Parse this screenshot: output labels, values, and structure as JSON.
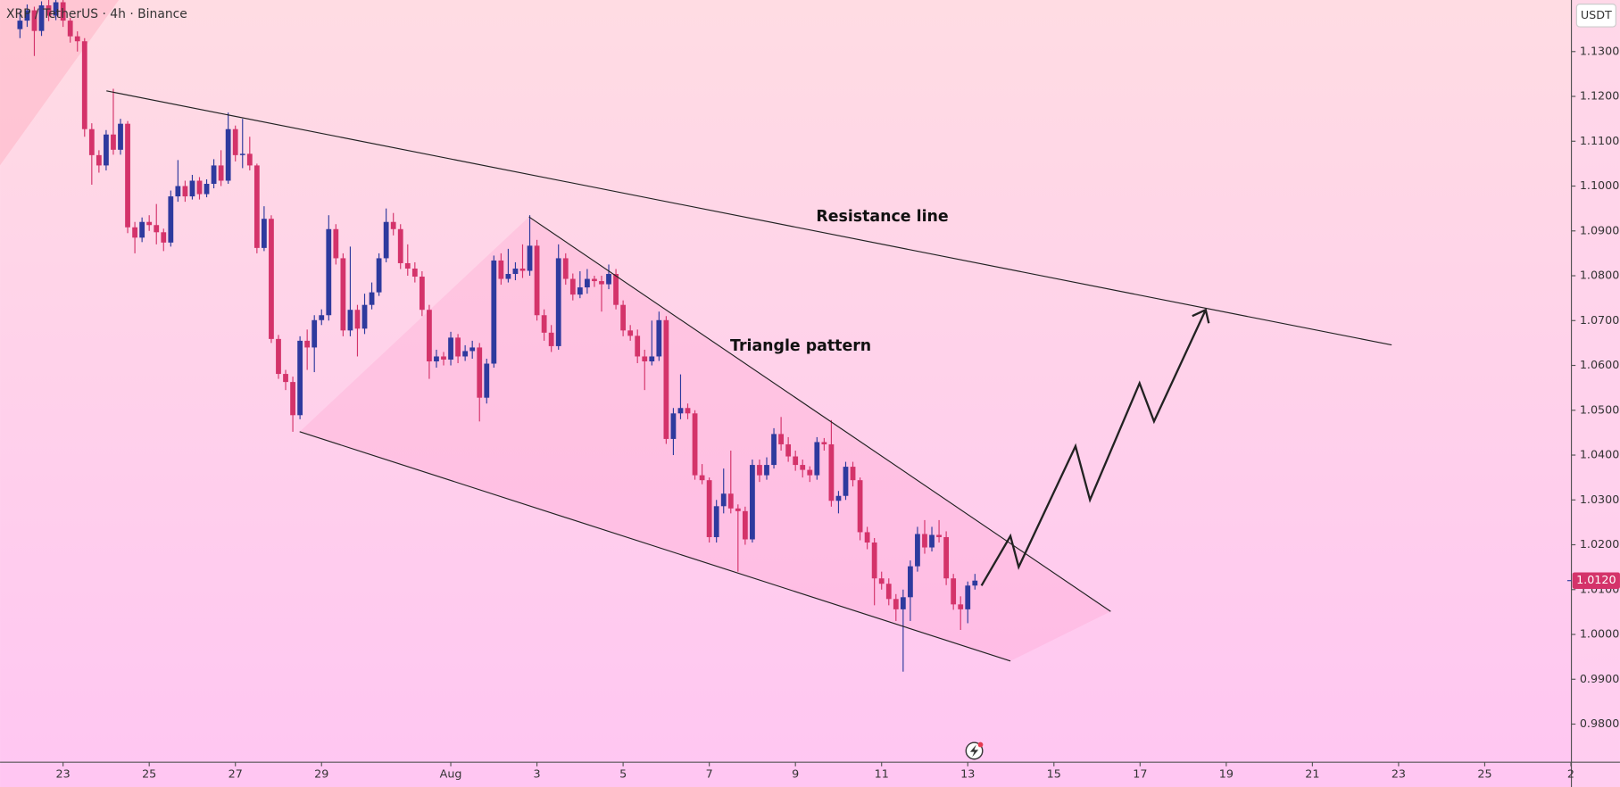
{
  "chart_data": {
    "type": "candlestick",
    "title": "XRP / TetherUS · 4h · Binance",
    "currency": "USDT",
    "annotations": [
      "Resistance line",
      "Triangle pattern"
    ],
    "up_color": "#2e3a9e",
    "down_color": "#d4336a",
    "last_price": {
      "value": 1.012,
      "label": "1.0120"
    },
    "xlim": [
      -1.463,
      35.012
    ],
    "ylim": [
      0.9715,
      1.1415
    ],
    "xticks": [
      {
        "value": 0,
        "label": "23"
      },
      {
        "value": 2,
        "label": "25"
      },
      {
        "value": 4,
        "label": "27"
      },
      {
        "value": 6,
        "label": "29"
      },
      {
        "value": 9,
        "label": "Aug"
      },
      {
        "value": 11,
        "label": "3"
      },
      {
        "value": 13,
        "label": "5"
      },
      {
        "value": 15,
        "label": "7"
      },
      {
        "value": 17,
        "label": "9"
      },
      {
        "value": 19,
        "label": "11"
      },
      {
        "value": 21,
        "label": "13"
      },
      {
        "value": 23,
        "label": "15"
      },
      {
        "value": 25,
        "label": "17"
      },
      {
        "value": 27,
        "label": "19"
      },
      {
        "value": 29,
        "label": "21"
      },
      {
        "value": 31,
        "label": "23"
      },
      {
        "value": 33,
        "label": "25"
      },
      {
        "value": 35,
        "label": "2"
      }
    ],
    "yticks": [
      {
        "value": 1.13,
        "label": "1.1300"
      },
      {
        "value": 1.12,
        "label": "1.1200"
      },
      {
        "value": 1.11,
        "label": "1.1100"
      },
      {
        "value": 1.1,
        "label": "1.1000"
      },
      {
        "value": 1.09,
        "label": "1.0900"
      },
      {
        "value": 1.08,
        "label": "1.0800"
      },
      {
        "value": 1.07,
        "label": "1.0700"
      },
      {
        "value": 1.06,
        "label": "1.0600"
      },
      {
        "value": 1.05,
        "label": "1.0500"
      },
      {
        "value": 1.04,
        "label": "1.0400"
      },
      {
        "value": 1.03,
        "label": "1.0300"
      },
      {
        "value": 1.02,
        "label": "1.0200"
      },
      {
        "value": 1.01,
        "label": "1.0100"
      },
      {
        "value": 1.0,
        "label": "1.0000"
      },
      {
        "value": 0.99,
        "label": "0.9900"
      },
      {
        "value": 0.98,
        "label": "0.9800"
      }
    ],
    "x": [
      -1,
      -0.8333,
      -0.6667,
      -0.5,
      -0.3333,
      -0.1667,
      0,
      0.1667,
      0.3333,
      0.5,
      0.6667,
      0.8333,
      1,
      1.1667,
      1.3333,
      1.5,
      1.6667,
      1.8333,
      2,
      2.1667,
      2.3333,
      2.5,
      2.6667,
      2.8333,
      3,
      3.1667,
      3.3333,
      3.5,
      3.6667,
      3.8333,
      4,
      4.1667,
      4.3333,
      4.5,
      4.6667,
      4.8333,
      5,
      5.1667,
      5.3333,
      5.5,
      5.6667,
      5.8333,
      6,
      6.1667,
      6.3333,
      6.5,
      6.6667,
      6.8333,
      7,
      7.1667,
      7.3333,
      7.5,
      7.6667,
      7.8333,
      8,
      8.1667,
      8.3333,
      8.5,
      8.6667,
      8.8333,
      9,
      9.1667,
      9.3333,
      9.5,
      9.6667,
      9.8333,
      10,
      10.1667,
      10.3333,
      10.5,
      10.6667,
      10.8333,
      11,
      11.1667,
      11.3333,
      11.5,
      11.6667,
      11.8333,
      12,
      12.1667,
      12.3333,
      12.5,
      12.6667,
      12.8333,
      13,
      13.1667,
      13.3333,
      13.5,
      13.6667,
      13.8333,
      14,
      14.1667,
      14.3333,
      14.5,
      14.6667,
      14.8333,
      15,
      15.1667,
      15.3333,
      15.5,
      15.6667,
      15.8333,
      16,
      16.1667,
      16.3333,
      16.5,
      16.6667,
      16.8333,
      17,
      17.1667,
      17.3333,
      17.5,
      17.6667,
      17.8333,
      18,
      18.1667,
      18.3333,
      18.5,
      18.6667,
      18.8333,
      19,
      19.1667,
      19.3333,
      19.5,
      19.6667,
      19.8333,
      20,
      20.1667,
      20.3333,
      20.5,
      20.6667,
      20.8333,
      21,
      21.1667
    ],
    "ohlc": [
      [
        1.135,
        1.139,
        1.133,
        1.1369
      ],
      [
        1.1369,
        1.1405,
        1.1355,
        1.1392
      ],
      [
        1.1392,
        1.14,
        1.129,
        1.1346
      ],
      [
        1.1346,
        1.1412,
        1.1335,
        1.1403
      ],
      [
        1.1403,
        1.1415,
        1.1368,
        1.138
      ],
      [
        1.138,
        1.1415,
        1.137,
        1.141
      ],
      [
        1.141,
        1.1415,
        1.1355,
        1.1369
      ],
      [
        1.1369,
        1.1375,
        1.132,
        1.1334
      ],
      [
        1.1334,
        1.1345,
        1.13,
        1.1323
      ],
      [
        1.1323,
        1.133,
        1.111,
        1.1127
      ],
      [
        1.1127,
        1.114,
        1.1003,
        1.1069
      ],
      [
        1.1069,
        1.108,
        1.103,
        1.1046
      ],
      [
        1.1046,
        1.1125,
        1.1035,
        1.1115
      ],
      [
        1.1115,
        1.1217,
        1.107,
        1.1081
      ],
      [
        1.1081,
        1.115,
        1.107,
        1.1139
      ],
      [
        1.1139,
        1.1145,
        1.0895,
        1.0908
      ],
      [
        1.0908,
        1.092,
        1.085,
        1.0885
      ],
      [
        1.0885,
        1.093,
        1.0875,
        1.092
      ],
      [
        1.092,
        1.0935,
        1.09,
        1.0913
      ],
      [
        1.0913,
        1.096,
        1.087,
        1.0897
      ],
      [
        1.0897,
        1.0905,
        1.0855,
        1.0874
      ],
      [
        1.0874,
        1.099,
        1.0865,
        1.0977
      ],
      [
        1.0977,
        1.1058,
        1.0965,
        1.1
      ],
      [
        1.1,
        1.1012,
        1.0965,
        1.0977
      ],
      [
        1.0977,
        1.1025,
        1.097,
        1.1012
      ],
      [
        1.1012,
        1.102,
        1.097,
        1.0982
      ],
      [
        1.0982,
        1.1015,
        1.0975,
        1.1005
      ],
      [
        1.1005,
        1.106,
        1.0995,
        1.1046
      ],
      [
        1.1046,
        1.108,
        1.1,
        1.1012
      ],
      [
        1.1012,
        1.1164,
        1.1005,
        1.1127
      ],
      [
        1.1127,
        1.1135,
        1.1055,
        1.1069
      ],
      [
        1.1069,
        1.115,
        1.104,
        1.1072
      ],
      [
        1.1072,
        1.111,
        1.1035,
        1.1046
      ],
      [
        1.1046,
        1.105,
        1.085,
        1.0862
      ],
      [
        1.0862,
        1.0955,
        1.0855,
        1.0927
      ],
      [
        1.0927,
        1.0935,
        1.065,
        1.0659
      ],
      [
        1.0659,
        1.0668,
        1.057,
        1.0581
      ],
      [
        1.0581,
        1.059,
        1.0545,
        1.0563
      ],
      [
        1.0563,
        1.0575,
        1.0452,
        1.0489
      ],
      [
        1.0489,
        1.0665,
        1.048,
        1.0655
      ],
      [
        1.0655,
        1.068,
        1.059,
        1.064
      ],
      [
        1.064,
        1.0712,
        1.0585,
        1.0701
      ],
      [
        1.0701,
        1.0725,
        1.069,
        1.0712
      ],
      [
        1.0712,
        1.0935,
        1.07,
        1.0904
      ],
      [
        1.0904,
        1.0915,
        1.0825,
        1.0839
      ],
      [
        1.0839,
        1.085,
        1.0665,
        1.0678
      ],
      [
        1.0678,
        1.0865,
        1.0665,
        1.0724
      ],
      [
        1.0724,
        1.0735,
        1.062,
        1.0682
      ],
      [
        1.0682,
        1.076,
        1.067,
        1.0735
      ],
      [
        1.0735,
        1.0785,
        1.0725,
        1.0763
      ],
      [
        1.0763,
        1.085,
        1.0755,
        1.0839
      ],
      [
        1.0839,
        1.095,
        1.083,
        1.092
      ],
      [
        1.092,
        1.094,
        1.089,
        1.0904
      ],
      [
        1.0904,
        1.0915,
        1.0815,
        1.0828
      ],
      [
        1.0828,
        1.087,
        1.08,
        1.0816
      ],
      [
        1.0816,
        1.083,
        1.0785,
        1.0798
      ],
      [
        1.0798,
        1.081,
        1.071,
        1.0724
      ],
      [
        1.0724,
        1.0735,
        1.057,
        1.0609
      ],
      [
        1.0609,
        1.0635,
        1.0595,
        1.062
      ],
      [
        1.062,
        1.063,
        1.06,
        1.0613
      ],
      [
        1.0613,
        1.0675,
        1.06,
        1.0662
      ],
      [
        1.0662,
        1.067,
        1.0605,
        1.062
      ],
      [
        1.062,
        1.0645,
        1.061,
        1.0632
      ],
      [
        1.0632,
        1.0655,
        1.0615,
        1.064
      ],
      [
        1.064,
        1.065,
        1.0475,
        1.0528
      ],
      [
        1.0528,
        1.0615,
        1.0515,
        1.0604
      ],
      [
        1.0604,
        1.0845,
        1.0595,
        1.0834
      ],
      [
        1.0834,
        1.085,
        1.078,
        1.0793
      ],
      [
        1.0793,
        1.086,
        1.0785,
        1.0804
      ],
      [
        1.0804,
        1.083,
        1.079,
        1.0816
      ],
      [
        1.0816,
        1.087,
        1.0795,
        1.0811
      ],
      [
        1.0811,
        1.0935,
        1.08,
        1.0867
      ],
      [
        1.0867,
        1.088,
        1.07,
        1.0712
      ],
      [
        1.0712,
        1.0725,
        1.0655,
        1.0673
      ],
      [
        1.0673,
        1.069,
        1.063,
        1.0643
      ],
      [
        1.0643,
        1.087,
        1.0635,
        1.0839
      ],
      [
        1.0839,
        1.085,
        1.078,
        1.0793
      ],
      [
        1.0793,
        1.0805,
        1.0745,
        1.0758
      ],
      [
        1.0758,
        1.081,
        1.075,
        1.0774
      ],
      [
        1.0774,
        1.0815,
        1.076,
        1.0793
      ],
      [
        1.0793,
        1.08,
        1.0775,
        1.0788
      ],
      [
        1.0788,
        1.08,
        1.072,
        1.0781
      ],
      [
        1.0781,
        1.0825,
        1.077,
        1.0804
      ],
      [
        1.0804,
        1.0815,
        1.0725,
        1.0735
      ],
      [
        1.0735,
        1.0745,
        1.0665,
        1.0678
      ],
      [
        1.0678,
        1.069,
        1.0655,
        1.0666
      ],
      [
        1.0666,
        1.068,
        1.0605,
        1.062
      ],
      [
        1.062,
        1.0635,
        1.0545,
        1.0609
      ],
      [
        1.0609,
        1.07,
        1.06,
        1.062
      ],
      [
        1.062,
        1.072,
        1.061,
        1.0701
      ],
      [
        1.0701,
        1.071,
        1.0425,
        1.0436
      ],
      [
        1.0436,
        1.0505,
        1.04,
        1.0493
      ],
      [
        1.0493,
        1.058,
        1.048,
        1.0505
      ],
      [
        1.0505,
        1.0515,
        1.048,
        1.0493
      ],
      [
        1.0493,
        1.05,
        1.0345,
        1.0355
      ],
      [
        1.0355,
        1.038,
        1.0335,
        1.0344
      ],
      [
        1.0344,
        1.035,
        1.0205,
        1.0217
      ],
      [
        1.0217,
        1.03,
        1.0205,
        1.0286
      ],
      [
        1.0286,
        1.037,
        1.027,
        1.0314
      ],
      [
        1.0314,
        1.041,
        1.027,
        1.0281
      ],
      [
        1.0281,
        1.029,
        1.014,
        1.0275
      ],
      [
        1.0275,
        1.0285,
        1.02,
        1.0212
      ],
      [
        1.0212,
        1.039,
        1.0205,
        1.0378
      ],
      [
        1.0378,
        1.039,
        1.034,
        1.0355
      ],
      [
        1.0355,
        1.0395,
        1.0345,
        1.0378
      ],
      [
        1.0378,
        1.046,
        1.037,
        1.0447
      ],
      [
        1.0447,
        1.0485,
        1.041,
        1.0424
      ],
      [
        1.0424,
        1.044,
        1.0385,
        1.0397
      ],
      [
        1.0397,
        1.041,
        1.0365,
        1.0378
      ],
      [
        1.0378,
        1.039,
        1.035,
        1.0367
      ],
      [
        1.0367,
        1.0375,
        1.034,
        1.0355
      ],
      [
        1.0355,
        1.044,
        1.0345,
        1.0429
      ],
      [
        1.0429,
        1.0438,
        1.041,
        1.0424
      ],
      [
        1.0424,
        1.0478,
        1.0285,
        1.0298
      ],
      [
        1.0298,
        1.032,
        1.027,
        1.0309
      ],
      [
        1.0309,
        1.0385,
        1.03,
        1.0374
      ],
      [
        1.0374,
        1.0385,
        1.033,
        1.0344
      ],
      [
        1.0344,
        1.035,
        1.021,
        1.0228
      ],
      [
        1.0228,
        1.024,
        1.019,
        1.0205
      ],
      [
        1.0205,
        1.0215,
        1.0065,
        1.0125
      ],
      [
        1.0125,
        1.014,
        1.01,
        1.0113
      ],
      [
        1.0113,
        1.0125,
        1.0065,
        1.0079
      ],
      [
        1.0079,
        1.009,
        1.003,
        1.0056
      ],
      [
        1.0056,
        1.01,
        0.9917,
        1.0083
      ],
      [
        1.0083,
        1.0165,
        1.003,
        1.0152
      ],
      [
        1.0152,
        1.024,
        1.014,
        1.0224
      ],
      [
        1.0224,
        1.0255,
        1.018,
        1.0194
      ],
      [
        1.0194,
        1.024,
        1.0185,
        1.0222
      ],
      [
        1.0222,
        1.0255,
        1.0205,
        1.0217
      ],
      [
        1.0217,
        1.023,
        1.011,
        1.0125
      ],
      [
        1.0125,
        1.0135,
        1.0055,
        1.0067
      ],
      [
        1.0067,
        1.0085,
        1.001,
        1.0056
      ],
      [
        1.0056,
        1.0118,
        1.0025,
        1.0109
      ],
      [
        1.0109,
        1.0135,
        1.01,
        1.012
      ]
    ]
  }
}
